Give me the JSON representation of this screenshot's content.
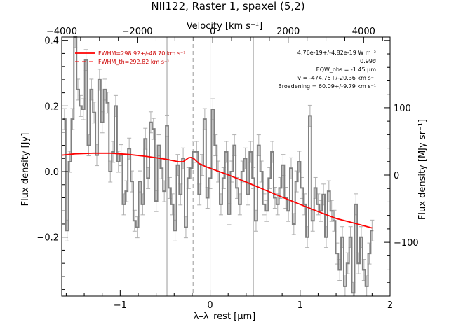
{
  "chart_data": {
    "type": "line",
    "title": "NII122, Raster 1, spaxel (5,2)",
    "xlabel": "λ–λ_rest [μm]",
    "ylabel": "Flux density [Jy]",
    "x2label": "Velocity [km s⁻¹]",
    "y2label": "Flux density [MJy sr⁻¹]",
    "xlim": [
      -1.65,
      2.0
    ],
    "ylim": [
      -0.38,
      0.41
    ],
    "x2lim": [
      -4000,
      4700
    ],
    "y2lim": [
      -180,
      205
    ],
    "xticks": [
      -1,
      0,
      1,
      2
    ],
    "yticks": [
      -0.2,
      0.0,
      0.2,
      0.4
    ],
    "x2ticks": [
      -4000,
      -2000,
      0,
      2000,
      4000
    ],
    "y2ticks": [
      -100,
      0,
      100
    ],
    "vlines": [
      -0.48,
      0,
      0.48
    ],
    "vline_dashed": -0.19,
    "annotations": [
      "4.76e-19+/-4.82e-19 W m⁻²",
      "0.99σ",
      "EQW_obs = -1.45 μm",
      "v = -474.75+/-20.36 km s⁻¹",
      "Broadening = 60.09+/-9.79 km s⁻¹"
    ],
    "legend": {
      "placement": "top-left",
      "entries": [
        "FWHM=298.92+/-48.70 km s⁻¹",
        "FWHM_th=292.82 km s⁻¹"
      ]
    },
    "series": [
      {
        "name": "FWHM=298.92+/-48.70 km s⁻¹",
        "kind": "fit",
        "color": "#ff0000",
        "x": [
          -1.65,
          -1.5,
          -1.3,
          -1.1,
          -0.9,
          -0.7,
          -0.5,
          -0.35,
          -0.3,
          -0.27,
          -0.24,
          -0.21,
          -0.18,
          -0.15,
          -0.12,
          -0.1,
          -0.05,
          0.0,
          0.2,
          0.4,
          0.6,
          0.8,
          1.0,
          1.2,
          1.4,
          1.6,
          1.8
        ],
        "y": [
          0.05,
          0.054,
          0.056,
          0.056,
          0.052,
          0.046,
          0.038,
          0.03,
          0.03,
          0.036,
          0.042,
          0.043,
          0.039,
          0.031,
          0.024,
          0.022,
          0.015,
          0.01,
          -0.01,
          -0.032,
          -0.055,
          -0.078,
          -0.1,
          -0.122,
          -0.143,
          -0.157,
          -0.172
        ]
      },
      {
        "name": "spectrum",
        "kind": "data",
        "color": "#808080",
        "x": [
          -1.62,
          -1.59,
          -1.56,
          -1.53,
          -1.5,
          -1.47,
          -1.44,
          -1.41,
          -1.38,
          -1.35,
          -1.32,
          -1.29,
          -1.26,
          -1.23,
          -1.2,
          -1.17,
          -1.14,
          -1.11,
          -1.08,
          -1.05,
          -1.02,
          -0.99,
          -0.96,
          -0.93,
          -0.9,
          -0.87,
          -0.84,
          -0.81,
          -0.78,
          -0.75,
          -0.72,
          -0.69,
          -0.66,
          -0.63,
          -0.6,
          -0.57,
          -0.54,
          -0.51,
          -0.48,
          -0.45,
          -0.42,
          -0.39,
          -0.36,
          -0.33,
          -0.3,
          -0.27,
          -0.24,
          -0.21,
          -0.18,
          -0.15,
          -0.12,
          -0.09,
          -0.06,
          -0.03,
          0.0,
          0.03,
          0.06,
          0.09,
          0.12,
          0.15,
          0.18,
          0.21,
          0.24,
          0.27,
          0.3,
          0.33,
          0.36,
          0.39,
          0.42,
          0.45,
          0.48,
          0.51,
          0.54,
          0.57,
          0.6,
          0.63,
          0.66,
          0.69,
          0.72,
          0.75,
          0.78,
          0.81,
          0.84,
          0.87,
          0.9,
          0.93,
          0.96,
          0.99,
          1.02,
          1.05,
          1.08,
          1.11,
          1.14,
          1.17,
          1.2,
          1.23,
          1.26,
          1.29,
          1.32,
          1.35,
          1.38,
          1.41,
          1.44,
          1.47,
          1.5,
          1.53,
          1.56,
          1.59,
          1.62,
          1.65,
          1.68,
          1.71,
          1.74,
          1.77,
          1.8
        ],
        "y": [
          0.16,
          -0.18,
          0.03,
          0.16,
          0.41,
          0.25,
          0.2,
          0.19,
          0.34,
          0.08,
          0.25,
          0.18,
          0.05,
          0.28,
          0.15,
          0.25,
          0.21,
          0.0,
          0.06,
          0.2,
          0.03,
          0.05,
          -0.1,
          -0.06,
          0.07,
          -0.03,
          -0.15,
          -0.17,
          -0.03,
          -0.1,
          0.1,
          -0.02,
          0.15,
          0.13,
          -0.09,
          0.08,
          0.01,
          -0.06,
          0.14,
          -0.05,
          -0.1,
          -0.18,
          0.02,
          -0.07,
          0.04,
          -0.17,
          -0.02,
          0.01,
          0.06,
          0.06,
          -0.07,
          0.02,
          0.16,
          -0.08,
          -0.02,
          0.19,
          0.08,
          0.0,
          -0.1,
          -0.02,
          0.06,
          -0.13,
          0.0,
          0.08,
          -0.05,
          -0.1,
          0.0,
          0.04,
          -0.07,
          0.06,
          -0.02,
          -0.15,
          0.08,
          0.0,
          -0.1,
          -0.12,
          -0.02,
          0.06,
          -0.08,
          -0.1,
          -0.05,
          0.02,
          -0.08,
          -0.12,
          0.01,
          -0.16,
          -0.03,
          0.03,
          -0.05,
          -0.1,
          -0.2,
          0.17,
          -0.15,
          -0.05,
          -0.1,
          -0.12,
          -0.07,
          -0.2,
          -0.06,
          -0.12,
          -0.15,
          -0.25,
          -0.3,
          -0.2,
          -0.35,
          -0.28,
          -0.2,
          -0.37,
          -0.1,
          -0.28,
          -0.2,
          -0.3,
          -0.35,
          -0.25,
          -0.18
        ]
      }
    ]
  }
}
